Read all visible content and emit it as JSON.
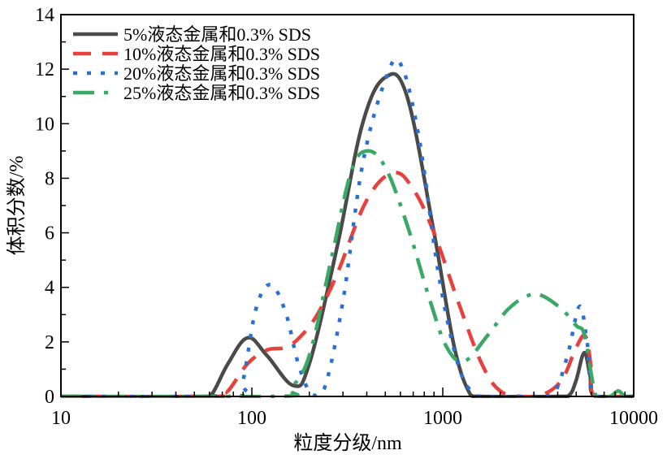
{
  "chart_data": {
    "type": "line",
    "title": "",
    "xlabel": "粒度分级/nm",
    "ylabel": "体积分数/%",
    "xscale": "log",
    "xlim": [
      10,
      10000
    ],
    "ylim": [
      0,
      14
    ],
    "xticks": [
      "10",
      "100",
      "1000",
      "10000"
    ],
    "xtick_values": [
      10,
      100,
      1000,
      10000
    ],
    "yticks": [
      "0",
      "2",
      "4",
      "6",
      "8",
      "10",
      "12",
      "14"
    ],
    "ytick_values": [
      0,
      2,
      4,
      6,
      8,
      10,
      12,
      14
    ],
    "grid": false,
    "legend_position": "top-left",
    "series": [
      {
        "name": "5%液态金属和0.3% SDS",
        "color": "#4a4a4a",
        "style": "solid",
        "x": [
          10,
          55,
          62,
          75,
          95,
          120,
          165,
          200,
          280,
          380,
          500,
          650,
          900,
          1150,
          1400,
          1600,
          4000,
          4600,
          5000,
          5500,
          5900,
          6300,
          10000
        ],
        "y": [
          0,
          0,
          0.1,
          1.2,
          2.15,
          1.5,
          0.4,
          1.2,
          5.5,
          10.0,
          11.7,
          11.0,
          6.0,
          1.8,
          0.05,
          0,
          0,
          0.05,
          0.6,
          1.6,
          0.8,
          0,
          0
        ]
      },
      {
        "name": "10%液态金属和0.3% SDS",
        "color": "#e8413c",
        "style": "dashed",
        "x": [
          10,
          65,
          75,
          95,
          120,
          150,
          180,
          220,
          280,
          400,
          550,
          700,
          900,
          1200,
          1600,
          2000,
          2600,
          3300,
          4200,
          5000,
          5600,
          6000,
          6300,
          10000
        ],
        "y": [
          0,
          0,
          0.2,
          1.2,
          1.7,
          1.8,
          2.2,
          3.0,
          4.5,
          7.2,
          8.2,
          7.6,
          6.0,
          3.5,
          1.2,
          0.2,
          0,
          0.05,
          0.6,
          1.8,
          2.2,
          1.0,
          0,
          0
        ]
      },
      {
        "name": "20%液态金属和0.3% SDS",
        "color": "#2a6fd6",
        "style": "dotted",
        "x": [
          10,
          80,
          90,
          105,
          125,
          150,
          175,
          205,
          240,
          300,
          380,
          500,
          600,
          750,
          950,
          1200,
          1450,
          1700,
          3000,
          3800,
          4500,
          5200,
          5700,
          6300,
          10000
        ],
        "y": [
          0,
          0,
          0.6,
          3.2,
          4.1,
          3.1,
          1.2,
          0.1,
          0.3,
          3.5,
          8.5,
          11.6,
          12.2,
          9.5,
          4.5,
          1.2,
          0.1,
          0,
          0,
          0.1,
          1.5,
          3.3,
          2.0,
          0,
          0
        ]
      },
      {
        "name": "25%液态金属和0.3% SDS",
        "color": "#3aa866",
        "style": "dashdot",
        "x": [
          10,
          135,
          160,
          200,
          260,
          330,
          400,
          500,
          650,
          850,
          1050,
          1300,
          1700,
          2200,
          2800,
          3300,
          4200,
          5000,
          5500,
          6000,
          6400,
          7500,
          8300,
          9000,
          10000
        ],
        "y": [
          0,
          0,
          0.3,
          1.5,
          5.0,
          8.2,
          9.0,
          8.4,
          6.3,
          3.6,
          1.8,
          1.3,
          2.2,
          3.2,
          3.7,
          3.7,
          3.2,
          2.6,
          2.3,
          0.8,
          0,
          0,
          0.2,
          0,
          0
        ]
      }
    ]
  }
}
